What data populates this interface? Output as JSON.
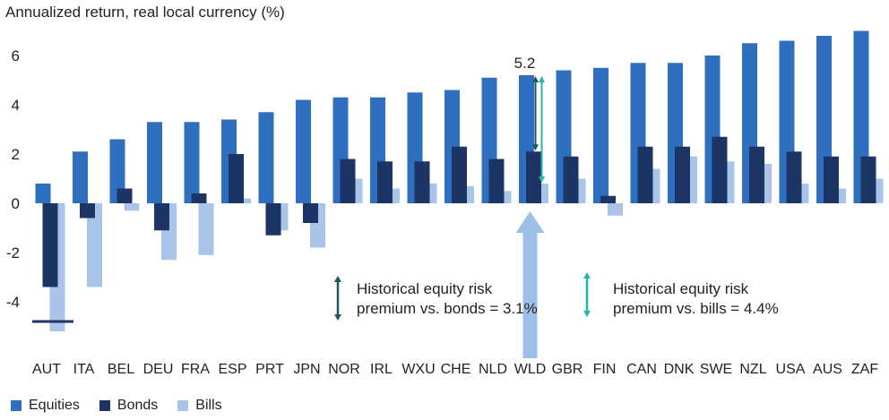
{
  "chart_data": {
    "type": "bar",
    "ylabel": "Annualized return, real local currency (%)",
    "ylim": [
      -5.5,
      7
    ],
    "yticks": [
      -4,
      -2,
      0,
      2,
      4,
      6
    ],
    "grid": false,
    "legend_position": "bottom-left",
    "categories": [
      "AUT",
      "ITA",
      "BEL",
      "DEU",
      "FRA",
      "ESP",
      "PRT",
      "JPN",
      "NOR",
      "IRL",
      "WXU",
      "CHE",
      "NLD",
      "WLD",
      "GBR",
      "FIN",
      "CAN",
      "DNK",
      "SWE",
      "NZL",
      "USA",
      "AUS",
      "ZAF"
    ],
    "series": [
      {
        "name": "Equities",
        "color": "#2f6fc0",
        "values": [
          0.8,
          2.1,
          2.6,
          3.3,
          3.3,
          3.4,
          3.7,
          4.2,
          4.3,
          4.3,
          4.5,
          4.6,
          5.1,
          5.2,
          5.4,
          5.5,
          5.7,
          5.7,
          6.0,
          6.5,
          6.6,
          6.8,
          7.0
        ]
      },
      {
        "name": "Bonds",
        "color": "#1c3564",
        "values": [
          -3.4,
          -0.6,
          0.6,
          -1.1,
          0.4,
          2.0,
          -1.3,
          -0.8,
          1.8,
          1.7,
          1.7,
          2.3,
          1.8,
          2.1,
          1.9,
          0.3,
          2.3,
          2.3,
          2.7,
          2.3,
          2.1,
          1.9,
          1.9
        ]
      },
      {
        "name": "Bills",
        "color": "#a8c4e8",
        "values": [
          -5.2,
          -3.4,
          -0.3,
          -2.3,
          -2.1,
          0.2,
          -1.1,
          -1.8,
          1.0,
          0.6,
          0.8,
          0.7,
          0.5,
          0.8,
          1.0,
          -0.5,
          1.4,
          1.9,
          1.7,
          1.6,
          0.8,
          0.6,
          1.0
        ]
      }
    ],
    "annotations": {
      "wld_equity_label": "5.2",
      "bonds_premium_text": [
        "Historical equity risk",
        "premium vs. bonds = 3.1%"
      ],
      "bills_premium_text": [
        "Historical equity risk",
        "premium vs. bills = 4.4%"
      ],
      "bonds_arrow_color": "#1a5a5e",
      "bills_arrow_color": "#2ab3ad",
      "highlight_arrow_color": "#9dc0e8",
      "aut_marker_color": "#1c3564"
    }
  }
}
